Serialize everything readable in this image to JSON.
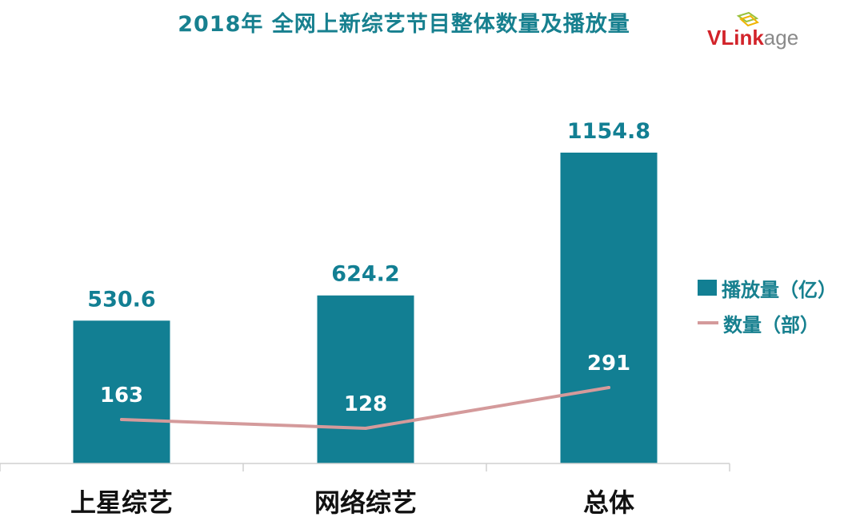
{
  "title": "2018年 全网上新综艺节目整体数量及播放量",
  "logo": {
    "text_main": "VLink",
    "text_tail": "age"
  },
  "colors": {
    "bar": "#127f93",
    "line": "#d49a9b",
    "title": "#17808f",
    "label": "#127f93"
  },
  "chart_data": {
    "type": "bar",
    "categories": [
      "上星综艺",
      "网络综艺",
      "总体"
    ],
    "series": [
      {
        "name": "播放量（亿）",
        "type": "bar",
        "values": [
          530.6,
          624.2,
          1154.8
        ],
        "labels": [
          "530.6",
          "624.2",
          "1154.8"
        ]
      },
      {
        "name": "数量（部）",
        "type": "line",
        "values": [
          163,
          128,
          291
        ],
        "labels": [
          "163",
          "128",
          "291"
        ]
      }
    ],
    "legend_position": "right",
    "grid": false
  }
}
